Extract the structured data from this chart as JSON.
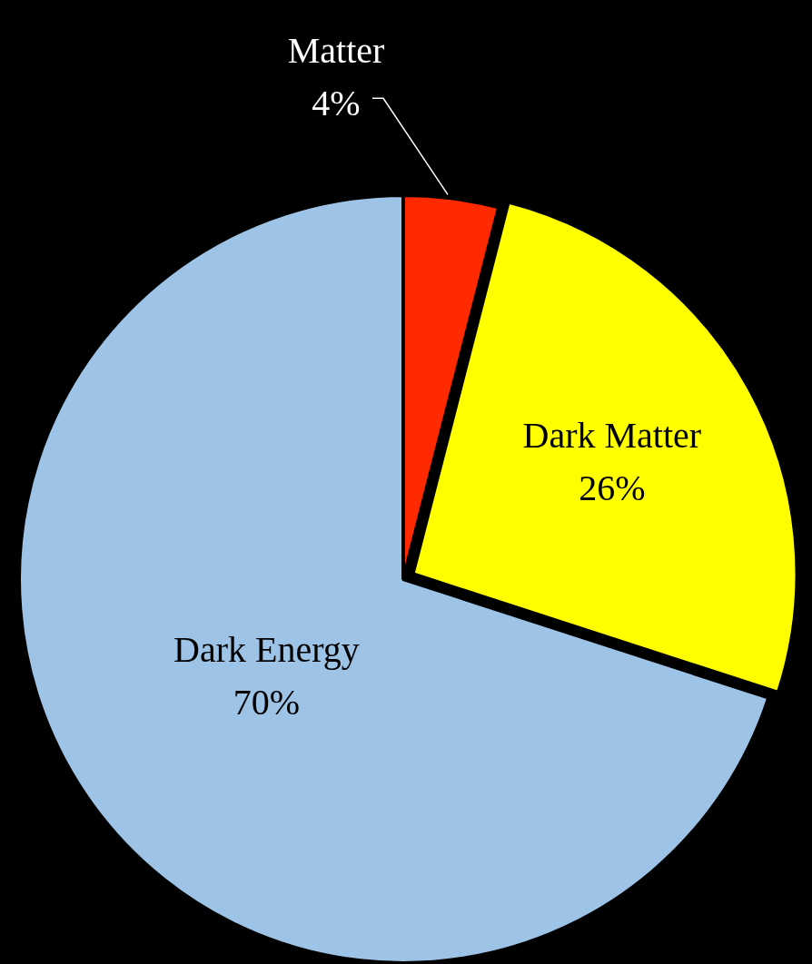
{
  "chart_data": {
    "type": "pie",
    "categories": [
      "Matter",
      "Dark Matter",
      "Dark Energy"
    ],
    "values": [
      4,
      26,
      70
    ],
    "value_labels": [
      "4%",
      "26%",
      "70%"
    ],
    "colors": [
      "#ff2a00",
      "#ffff00",
      "#9dc3e6"
    ]
  }
}
